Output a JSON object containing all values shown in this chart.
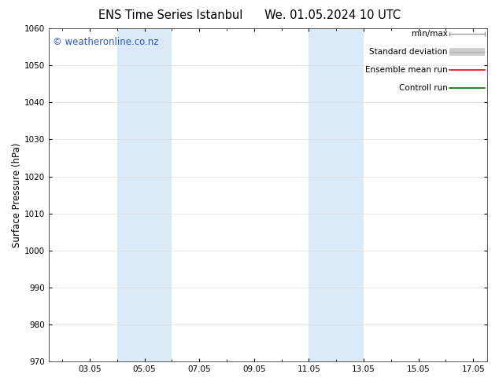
{
  "title_left": "ENS Time Series Istanbul",
  "title_right": "We. 01.05.2024 10 UTC",
  "ylabel": "Surface Pressure (hPa)",
  "ylim": [
    970,
    1060
  ],
  "yticks": [
    970,
    980,
    990,
    1000,
    1010,
    1020,
    1030,
    1040,
    1050,
    1060
  ],
  "x_labels": [
    "03.05",
    "05.05",
    "07.05",
    "09.05",
    "11.05",
    "13.05",
    "15.05",
    "17.05"
  ],
  "x_tick_positions": [
    3,
    5,
    7,
    9,
    11,
    13,
    15,
    17
  ],
  "xlim": [
    1.5,
    17.5
  ],
  "shade_bands": [
    {
      "x_start": 4.0,
      "x_end": 6.0
    },
    {
      "x_start": 11.0,
      "x_end": 13.0
    }
  ],
  "shade_color": "#daeaf7",
  "watermark_text": "© weatheronline.co.nz",
  "watermark_color": "#3355bb",
  "watermark_fontsize": 8.5,
  "bg_color": "#ffffff",
  "plot_bg_color": "#ffffff",
  "tick_label_fontsize": 7.5,
  "axis_label_fontsize": 8.5,
  "title_fontsize": 10.5,
  "grid_color": "#dddddd",
  "spine_color": "#555555",
  "legend_fontsize": 7.5
}
